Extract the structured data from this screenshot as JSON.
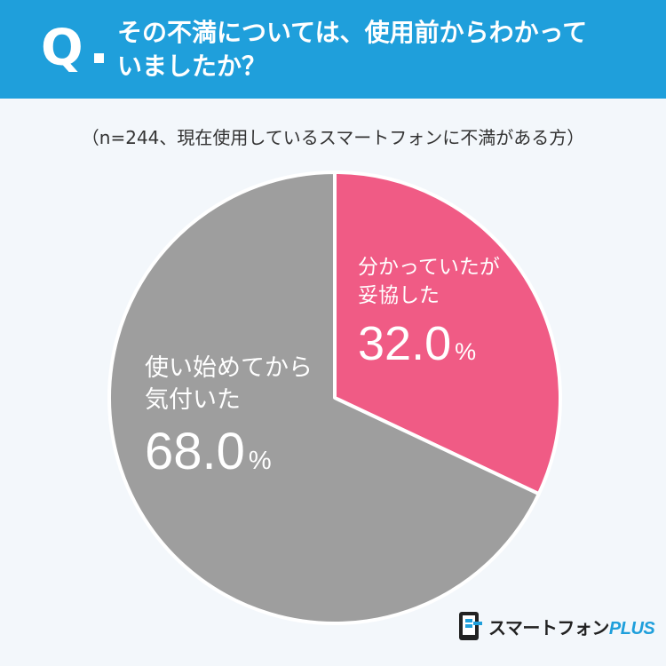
{
  "question": {
    "mark": "Q",
    "line1": "その不満については、使用前からわかって",
    "line2": "いましたか？"
  },
  "note": "（n=244、現在使用しているスマートフォンに不満がある方）",
  "chart_data": {
    "type": "pie",
    "slices": [
      {
        "label_line1": "分かっていたが",
        "label_line2": "妥協した",
        "value": 32.0,
        "value_text": "32.0",
        "unit": "%",
        "color": "#f05b85"
      },
      {
        "label_line1": "使い始めてから",
        "label_line2": "気付いた",
        "value": 68.0,
        "value_text": "68.0",
        "unit": "%",
        "color": "#9e9e9e"
      }
    ]
  },
  "logo": {
    "text": "スマートフォン",
    "accent": "PLUS",
    "colors": {
      "main": "#222222",
      "accent": "#1f9fdb"
    }
  }
}
